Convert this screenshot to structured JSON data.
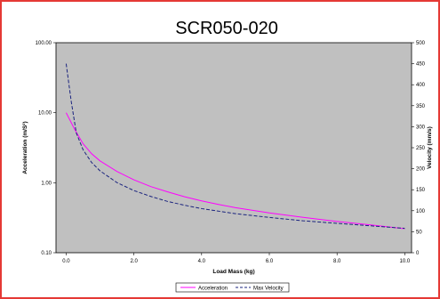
{
  "chart_data": {
    "type": "line",
    "title": "SCR050-020",
    "xlabel": "Load Mass (kg)",
    "ylabel_left": "Acceleration  (m/S²)",
    "ylabel_right": "Velocity (mm/s)",
    "xlim": [
      -0.3,
      10.2
    ],
    "ylim_left": [
      0.1,
      100
    ],
    "ylim_right": [
      0,
      500
    ],
    "y_left_scale": "log",
    "x_ticks": [
      "0.0",
      "2.0",
      "4.0",
      "6.0",
      "8.0",
      "10.0"
    ],
    "y_left_ticks": [
      "100.00",
      "10.00",
      "1.00",
      "0.10"
    ],
    "y_right_ticks": [
      "500",
      "450",
      "400",
      "350",
      "300",
      "250",
      "200",
      "150",
      "100",
      "50",
      "0"
    ],
    "legend_position": "bottom",
    "plot_background": "#c0c0c0",
    "series": [
      {
        "name": "Acceleration",
        "axis": "left",
        "color": "#ff00ff",
        "dash": "solid",
        "x": [
          0,
          0.25,
          0.5,
          0.75,
          1,
          1.5,
          2,
          2.5,
          3,
          3.5,
          4,
          4.5,
          5,
          6,
          7,
          8,
          9,
          10
        ],
        "y": [
          10,
          5.8,
          3.6,
          2.6,
          2.05,
          1.45,
          1.1,
          0.88,
          0.74,
          0.63,
          0.55,
          0.49,
          0.44,
          0.37,
          0.32,
          0.28,
          0.25,
          0.22
        ]
      },
      {
        "name": "Max Velocity",
        "axis": "right",
        "color": "#1a237e",
        "dash": "dashed",
        "x": [
          0,
          0.15,
          0.3,
          0.5,
          0.75,
          1,
          1.5,
          2,
          2.5,
          3,
          3.5,
          4,
          5,
          6,
          7,
          8,
          9,
          10
        ],
        "y": [
          450,
          360,
          285,
          245,
          215,
          195,
          167,
          148,
          134,
          122,
          113,
          105,
          93,
          84,
          76,
          70,
          64,
          58
        ]
      }
    ]
  }
}
